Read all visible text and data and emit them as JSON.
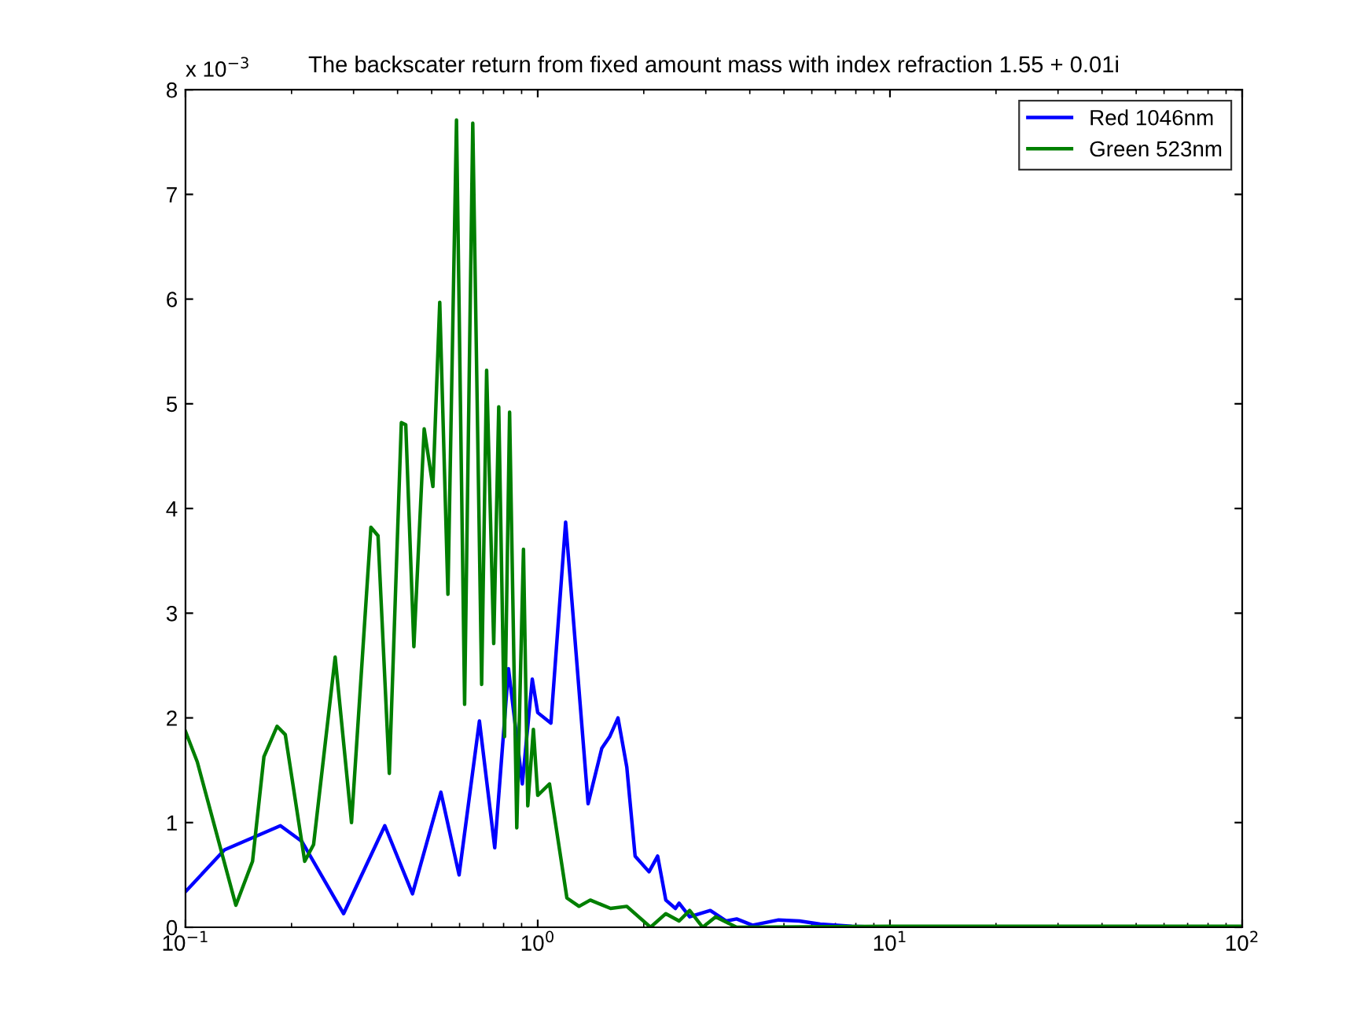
{
  "chart_data": {
    "type": "line",
    "title": "The backscater return from fixed amount mass with index refraction 1.55 + 0.01i",
    "annotations": [
      "x 10$^{−3}$"
    ],
    "log": "x",
    "grid": false,
    "legend": "top right",
    "marker": "none",
    "line_style": "solid",
    "xlim": [
      0.1,
      100
    ],
    "xticks": [
      {
        "value": 0.1,
        "label": "10$^{−1}$"
      },
      {
        "value": 1,
        "label": "10$^{0}$"
      },
      {
        "value": 10,
        "label": "10$^{1}$"
      },
      {
        "value": 100,
        "label": "10$^{2}$"
      }
    ],
    "ylim": [
      0,
      8
    ],
    "yticks": [
      0,
      1,
      2,
      3,
      4,
      5,
      6,
      7,
      8
    ],
    "series": [
      {
        "name": "Red 1046nm",
        "color": "#0000ff",
        "x": [
          0.1,
          0.129,
          0.186,
          0.214,
          0.281,
          0.368,
          0.441,
          0.531,
          0.598,
          0.683,
          0.755,
          0.826,
          0.904,
          0.965,
          1.0,
          1.09,
          1.2,
          1.39,
          1.52,
          1.6,
          1.69,
          1.79,
          1.89,
          2.07,
          2.19,
          2.31,
          2.46,
          2.52,
          2.7,
          3.09,
          3.43,
          3.67,
          4.07,
          4.83,
          5.53,
          6.34,
          7.79,
          9.56
        ],
        "values": [
          0.34,
          0.74,
          0.97,
          0.82,
          0.13,
          0.97,
          0.32,
          1.29,
          0.5,
          1.97,
          0.76,
          2.47,
          1.37,
          2.37,
          2.05,
          1.95,
          3.87,
          1.18,
          1.71,
          1.82,
          2.0,
          1.53,
          0.68,
          0.53,
          0.68,
          0.26,
          0.18,
          0.23,
          0.1,
          0.16,
          0.06,
          0.08,
          0.02,
          0.07,
          0.06,
          0.03,
          0.01,
          0.0
        ]
      },
      {
        "name": "Green 523nm",
        "color": "#007f00",
        "x": [
          0.1,
          0.108,
          0.139,
          0.155,
          0.167,
          0.182,
          0.192,
          0.218,
          0.231,
          0.266,
          0.296,
          0.336,
          0.352,
          0.379,
          0.41,
          0.422,
          0.445,
          0.476,
          0.504,
          0.527,
          0.556,
          0.588,
          0.62,
          0.654,
          0.693,
          0.716,
          0.75,
          0.775,
          0.805,
          0.832,
          0.872,
          0.911,
          0.937,
          0.972,
          1.0,
          1.08,
          1.21,
          1.31,
          1.41,
          1.61,
          1.79,
          2.09,
          2.31,
          2.52,
          2.7,
          2.94,
          3.2,
          3.67,
          10,
          100
        ],
        "values": [
          1.87,
          1.58,
          0.21,
          0.63,
          1.63,
          1.92,
          1.84,
          0.63,
          0.79,
          2.58,
          1.0,
          3.82,
          3.74,
          1.47,
          4.82,
          4.8,
          2.68,
          4.76,
          4.21,
          5.97,
          3.18,
          7.71,
          2.13,
          7.68,
          2.32,
          5.32,
          2.71,
          4.97,
          1.82,
          4.92,
          0.95,
          3.61,
          1.16,
          1.89,
          1.26,
          1.37,
          0.28,
          0.2,
          0.26,
          0.18,
          0.2,
          0.0,
          0.13,
          0.06,
          0.16,
          0.0,
          0.1,
          0.0,
          0.01,
          0.01
        ]
      }
    ]
  }
}
